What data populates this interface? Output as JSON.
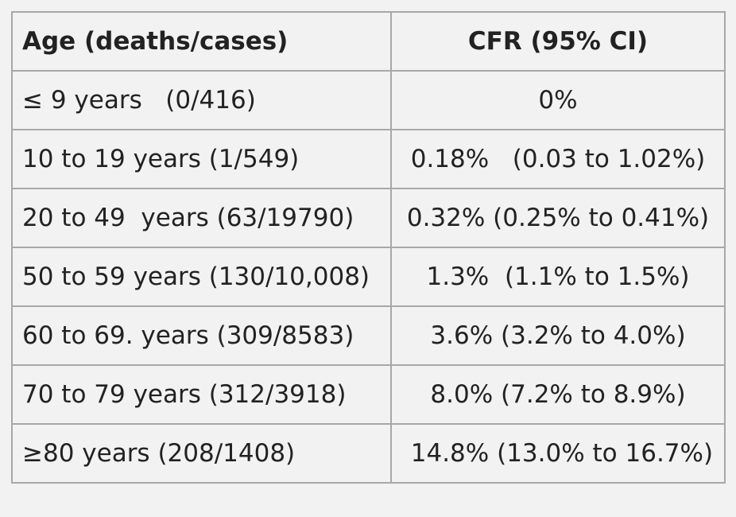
{
  "table": {
    "headers": [
      "Age (deaths/cases)",
      "CFR (95% CI)"
    ],
    "rows": [
      {
        "age": "≤ 9 years   (0/416)",
        "cfr": "0%"
      },
      {
        "age": "10 to 19 years (1/549)",
        "cfr": "0.18%   (0.03 to 1.02%)"
      },
      {
        "age": "20 to 49  years (63/19790)",
        "cfr": "0.32% (0.25% to 0.41%)"
      },
      {
        "age": "50 to 59 years (130/10,008)",
        "cfr": "1.3%  (1.1% to 1.5%)"
      },
      {
        "age": "60 to 69. years (309/8583)",
        "cfr": "3.6% (3.2% to 4.0%)"
      },
      {
        "age": "70 to 79 years (312/3918)",
        "cfr": "8.0% (7.2% to 8.9%)"
      },
      {
        "age": "≥80 years (208/1408)",
        "cfr": " 14.8% (13.0% to 16.7%)"
      }
    ]
  }
}
